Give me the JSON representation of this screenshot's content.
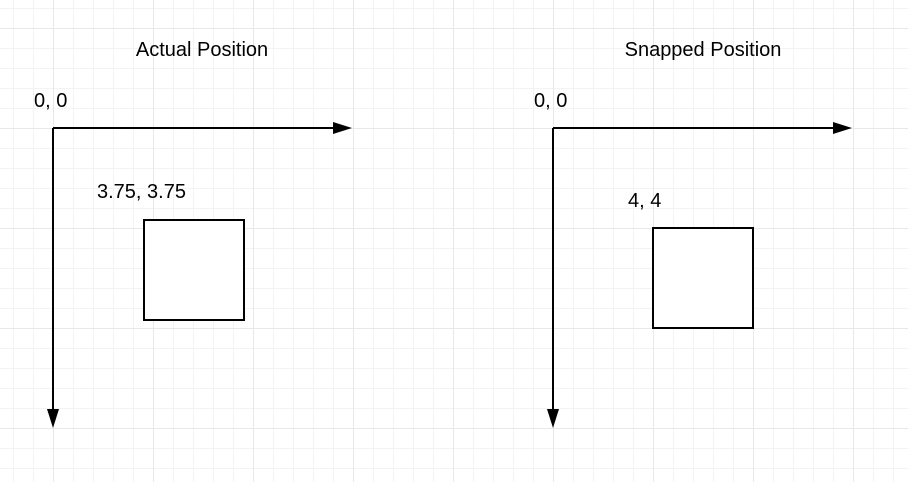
{
  "panels": [
    {
      "title": "Actual Position",
      "origin_label": "0, 0",
      "coord_label": "3.75, 3.75"
    },
    {
      "title": "Snapped Position",
      "origin_label": "0, 0",
      "coord_label": "4, 4"
    }
  ]
}
